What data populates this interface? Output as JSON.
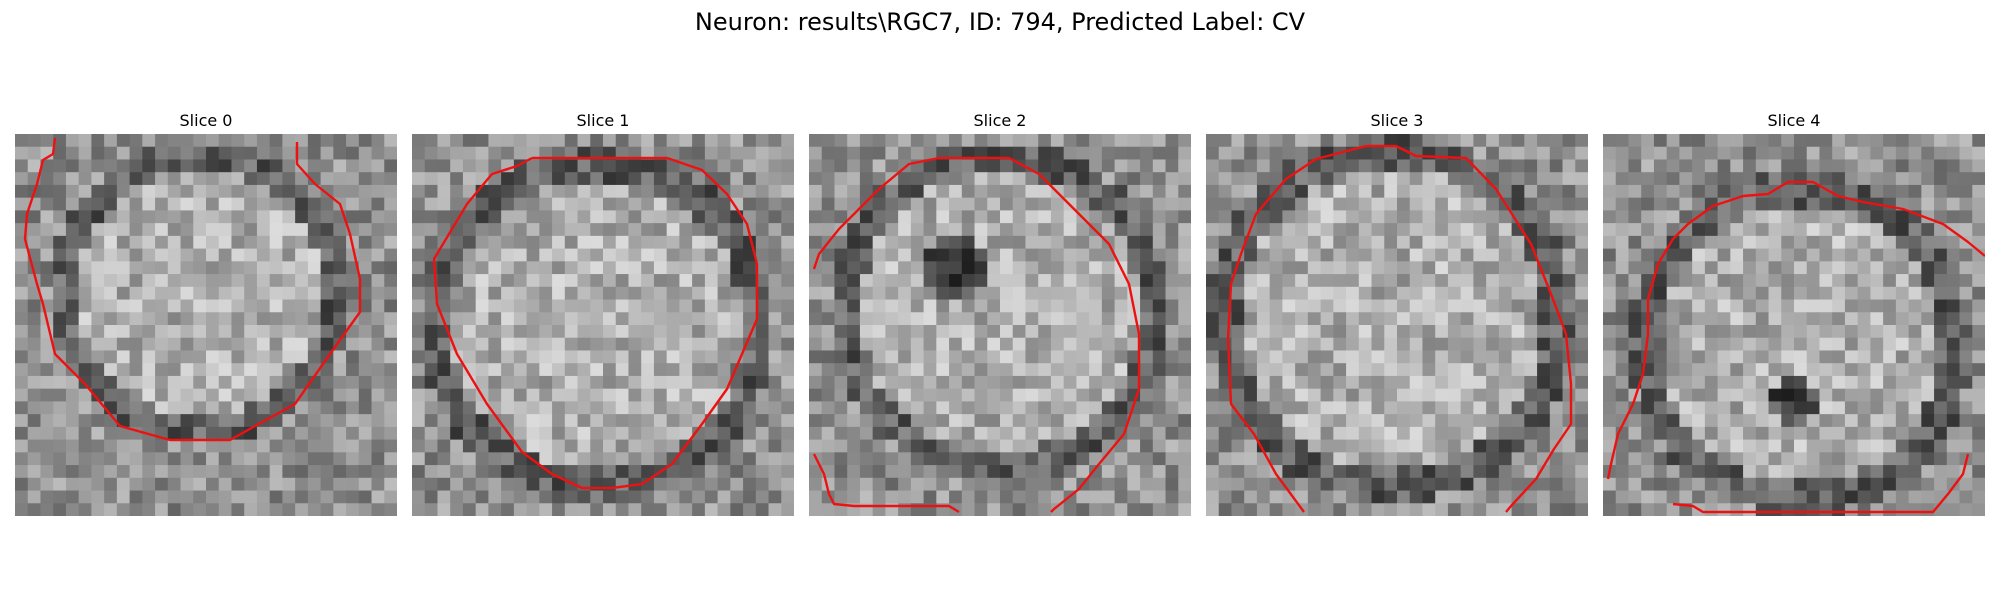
{
  "figure": {
    "title": "Neuron: results\\RGC7, ID: 794, Predicted Label: CV"
  },
  "panels": [
    {
      "title": "Slice 0"
    },
    {
      "title": "Slice 1"
    },
    {
      "title": "Slice 2"
    },
    {
      "title": "Slice 3"
    },
    {
      "title": "Slice 4"
    }
  ],
  "colors": {
    "contour": "#ee1111",
    "background": "#ffffff"
  }
}
